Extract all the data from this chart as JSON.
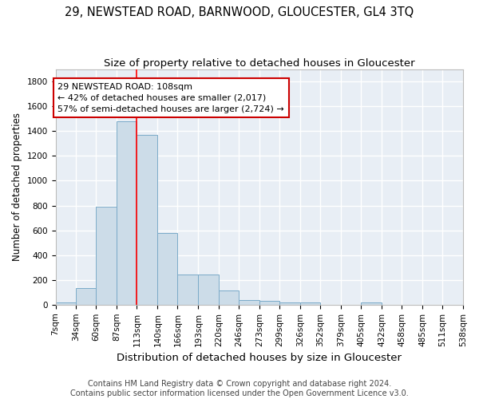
{
  "title1": "29, NEWSTEAD ROAD, BARNWOOD, GLOUCESTER, GL4 3TQ",
  "title2": "Size of property relative to detached houses in Gloucester",
  "xlabel": "Distribution of detached houses by size in Gloucester",
  "ylabel": "Number of detached properties",
  "bin_edges": [
    7,
    34,
    60,
    87,
    113,
    140,
    166,
    193,
    220,
    246,
    273,
    299,
    326,
    352,
    379,
    405,
    432,
    458,
    485,
    511,
    538
  ],
  "bin_labels": [
    "7sqm",
    "34sqm",
    "60sqm",
    "87sqm",
    "113sqm",
    "140sqm",
    "166sqm",
    "193sqm",
    "220sqm",
    "246sqm",
    "273sqm",
    "299sqm",
    "326sqm",
    "352sqm",
    "379sqm",
    "405sqm",
    "432sqm",
    "458sqm",
    "485sqm",
    "511sqm",
    "538sqm"
  ],
  "bar_heights": [
    20,
    135,
    790,
    1480,
    1370,
    575,
    245,
    245,
    115,
    35,
    30,
    20,
    20,
    0,
    0,
    20,
    0,
    0,
    0,
    0
  ],
  "bar_color": "#ccdce8",
  "bar_edge_color": "#7aaac8",
  "bar_edge_width": 0.7,
  "red_line_x": 113,
  "ylim": [
    0,
    1900
  ],
  "yticks": [
    0,
    200,
    400,
    600,
    800,
    1000,
    1200,
    1400,
    1600,
    1800
  ],
  "annotation_line1": "29 NEWSTEAD ROAD: 108sqm",
  "annotation_line2": "← 42% of detached houses are smaller (2,017)",
  "annotation_line3": "57% of semi-detached houses are larger (2,724) →",
  "annotation_box_color": "#ffffff",
  "annotation_box_edge_color": "#cc0000",
  "footer1": "Contains HM Land Registry data © Crown copyright and database right 2024.",
  "footer2": "Contains public sector information licensed under the Open Government Licence v3.0.",
  "bg_color": "#e8eef5",
  "grid_color": "#ffffff",
  "title1_fontsize": 10.5,
  "title2_fontsize": 9.5,
  "xlabel_fontsize": 9.5,
  "ylabel_fontsize": 8.5,
  "tick_fontsize": 7.5,
  "annotation_fontsize": 8,
  "footer_fontsize": 7
}
